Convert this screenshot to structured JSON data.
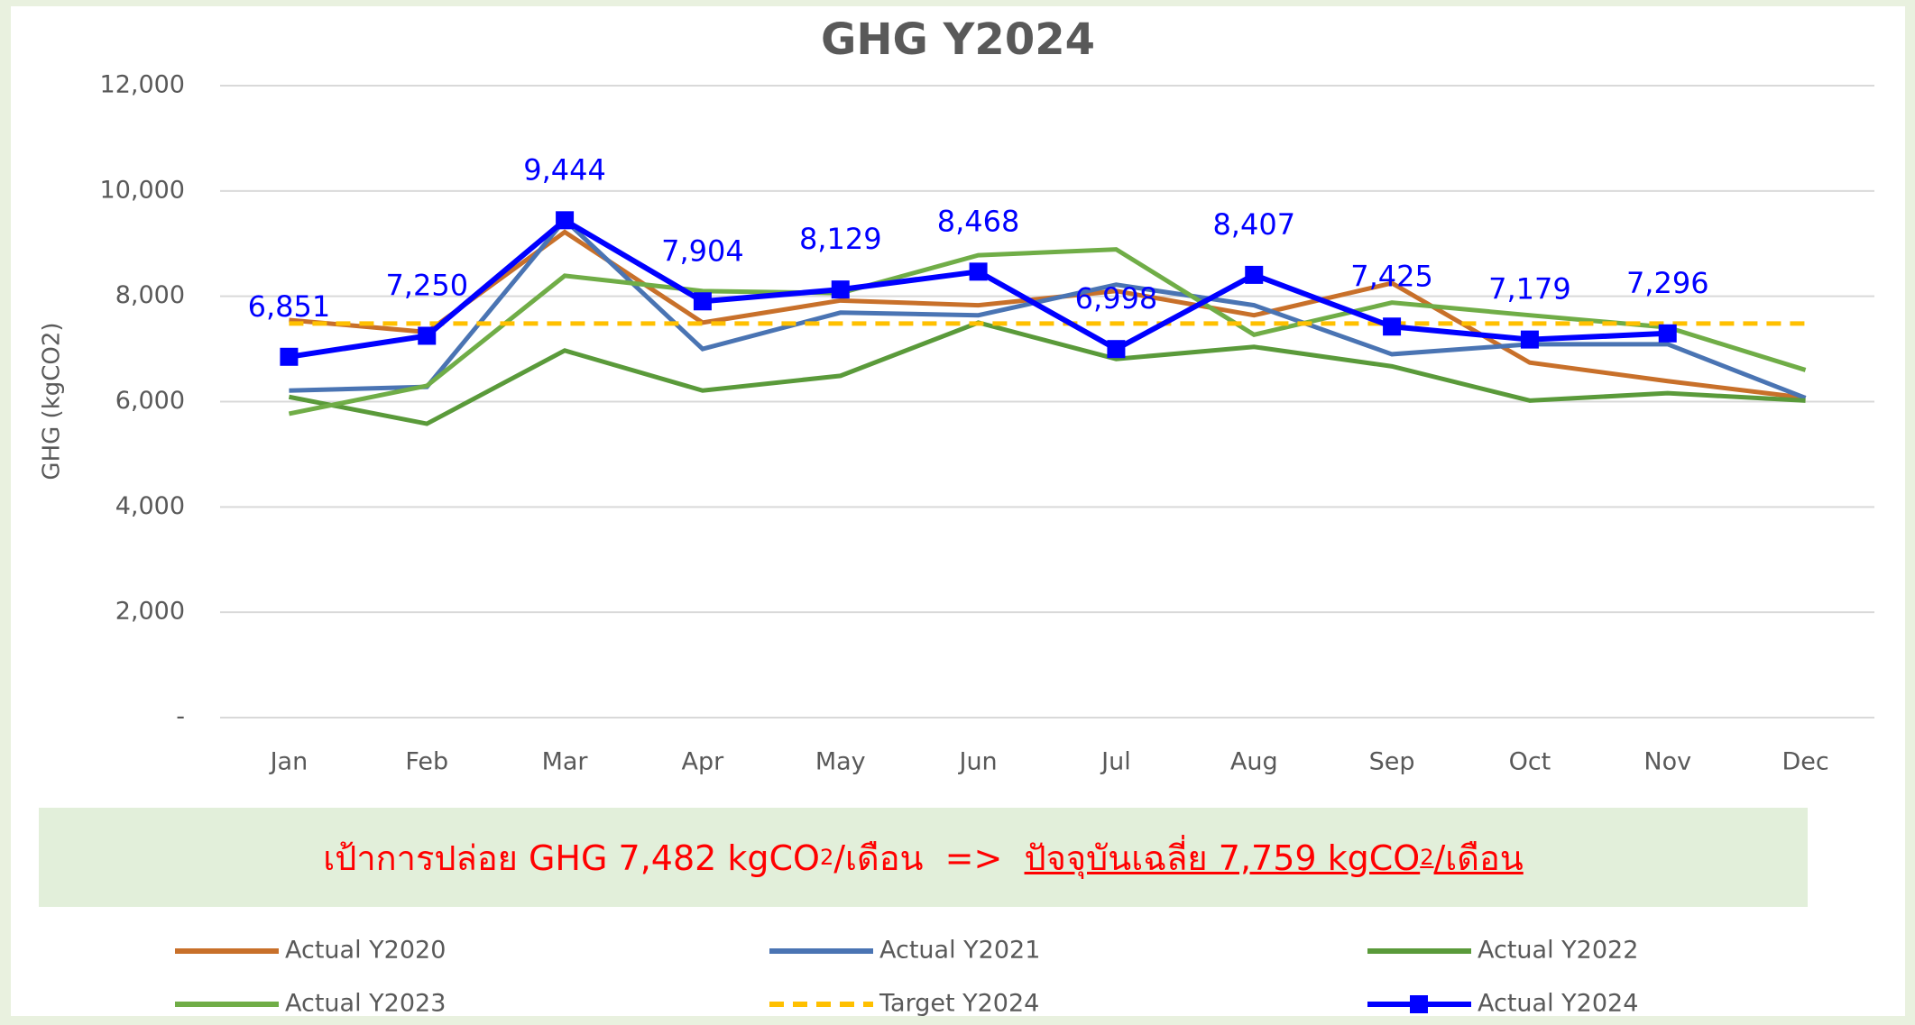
{
  "chart_data": {
    "type": "line",
    "title": "GHG Y2024",
    "y_label": "GHG (kgCO2)",
    "categories": [
      "Jan",
      "Feb",
      "Mar",
      "Apr",
      "May",
      "Jun",
      "Jul",
      "Aug",
      "Sep",
      "Oct",
      "Nov",
      "Dec"
    ],
    "ylim": [
      0,
      12000
    ],
    "yticks": [
      {
        "value": 0,
        "label": "-"
      },
      {
        "value": 2000,
        "label": "2,000"
      },
      {
        "value": 4000,
        "label": "4,000"
      },
      {
        "value": 6000,
        "label": "6,000"
      },
      {
        "value": 8000,
        "label": "8,000"
      },
      {
        "value": 10000,
        "label": "10,000"
      },
      {
        "value": 12000,
        "label": "12,000"
      }
    ],
    "grid": true,
    "series": [
      {
        "name": "Actual Y2020",
        "color": "#c8702a",
        "values": [
          7550,
          7320,
          9220,
          7500,
          7920,
          7830,
          8100,
          7640,
          8250,
          6740,
          6390,
          6070
        ]
      },
      {
        "name": "Actual Y2021",
        "color": "#4a74b3",
        "values": [
          6210,
          6280,
          9450,
          7000,
          7690,
          7640,
          8220,
          7830,
          6900,
          7090,
          7090,
          6070
        ]
      },
      {
        "name": "Actual Y2022",
        "color": "#5a9a3a",
        "values": [
          6090,
          5580,
          6970,
          6210,
          6490,
          7500,
          6810,
          7040,
          6670,
          6020,
          6160,
          6020
        ]
      },
      {
        "name": "Actual Y2023",
        "color": "#70ad47",
        "values": [
          5770,
          6300,
          8390,
          8100,
          8060,
          8780,
          8890,
          7270,
          7880,
          7640,
          7410,
          6600
        ]
      },
      {
        "name": "Target Y2024",
        "color": "#ffc000",
        "dash": true,
        "values": [
          7482,
          7482,
          7482,
          7482,
          7482,
          7482,
          7482,
          7482,
          7482,
          7482,
          7482,
          7482
        ]
      },
      {
        "name": "Actual Y2024",
        "color": "#0000ff",
        "marker": "square",
        "values": [
          6851,
          7250,
          9444,
          7904,
          8129,
          8468,
          6998,
          8407,
          7425,
          7179,
          7296,
          null
        ],
        "value_labels": [
          "6,851",
          "7,250",
          "9,444",
          "7,904",
          "8,129",
          "8,468",
          "6,998",
          "8,407",
          "7,425",
          "7,179",
          "7,296",
          null
        ]
      }
    ],
    "banner": [
      {
        "text": "เป้าการปล่อย GHG 7,482 kgCO"
      },
      {
        "text": "2",
        "sub": true
      },
      {
        "text": "/เดือน  =>  "
      },
      {
        "text": "ปัจจุบันเฉลี่ย 7,759 kgCO",
        "underline": true
      },
      {
        "text": "2",
        "sub": true,
        "underline": true
      },
      {
        "text": "/เดือน",
        "underline": true
      }
    ]
  }
}
